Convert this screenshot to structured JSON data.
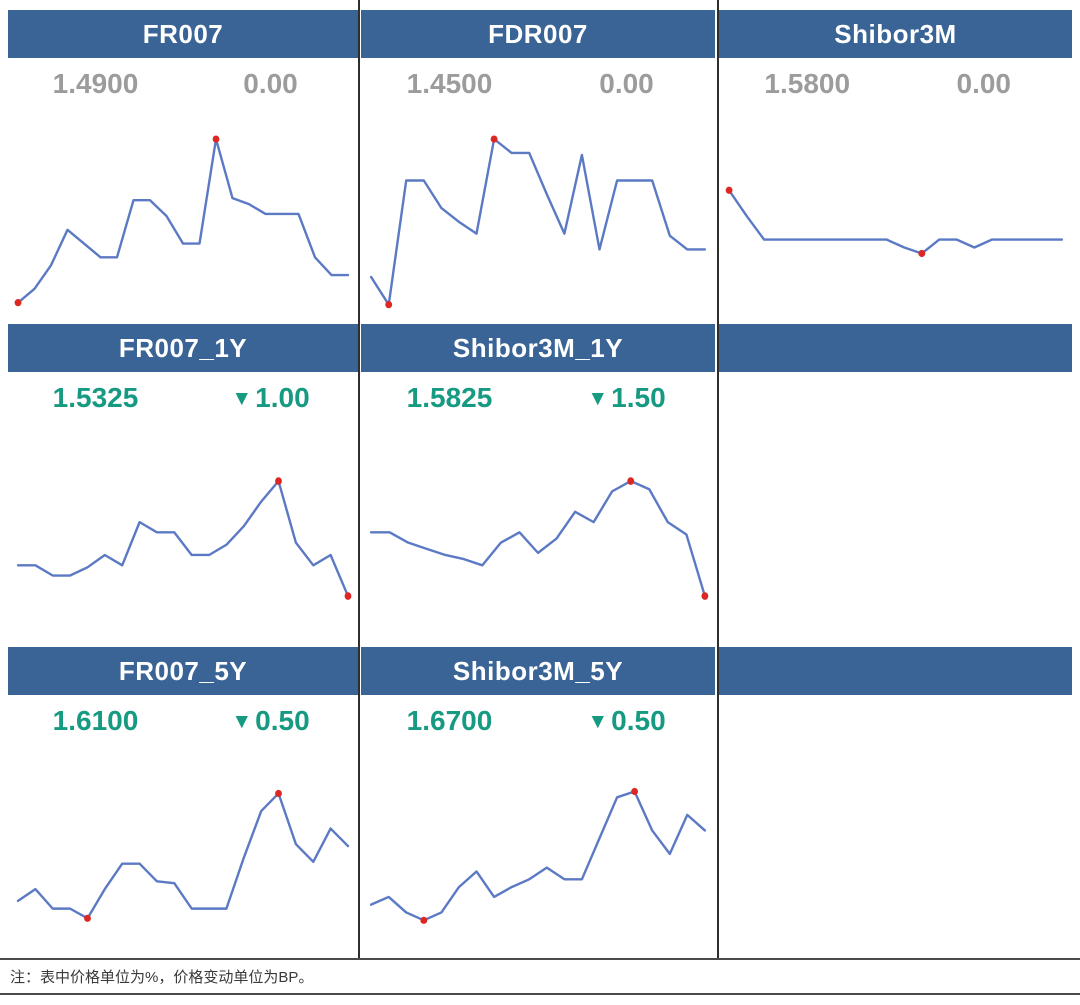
{
  "note": "注：表中价格单位为%，价格变动单位为BP。",
  "icons": {
    "down_triangle": "▼"
  },
  "colors": {
    "header_bg": "#3A6496",
    "header_text": "#FFFFFF",
    "neutral_value": "#9C9C9C",
    "down_green": "#169A82",
    "spark_line": "#5C79C4",
    "spark_marker": "#DD2725",
    "grid_line": "#2E2E2E"
  },
  "empty_header_cells": [
    {
      "row": 2,
      "col": 3
    },
    {
      "row": 3,
      "col": 3
    }
  ],
  "chart_data": [
    {
      "type": "line",
      "row": 1,
      "col": 1,
      "title": "FR007",
      "value": "1.4900",
      "change": "0.00",
      "direction": "flat",
      "y_relative": [
        6,
        13,
        25,
        43,
        36,
        29,
        29,
        58,
        58,
        50,
        36,
        36,
        89,
        59,
        56,
        51,
        51,
        51,
        29,
        20,
        20
      ],
      "min_index": 0,
      "max_index": 12
    },
    {
      "type": "line",
      "row": 1,
      "col": 2,
      "title": "FDR007",
      "value": "1.4500",
      "change": "0.00",
      "direction": "flat",
      "y_relative": [
        19,
        5,
        68,
        68,
        54,
        47,
        41,
        89,
        82,
        82,
        61,
        41,
        81,
        33,
        68,
        68,
        68,
        40,
        33,
        33
      ],
      "min_index": 1,
      "max_index": 7
    },
    {
      "type": "line",
      "row": 1,
      "col": 3,
      "title": "Shibor3M",
      "value": "1.5800",
      "change": "0.00",
      "direction": "flat",
      "y_relative": [
        63,
        50,
        38,
        38,
        38,
        38,
        38,
        38,
        38,
        38,
        34,
        31,
        38,
        38,
        34,
        38,
        38,
        38,
        38,
        38
      ],
      "min_index": 11,
      "max_index": 0
    },
    {
      "type": "line",
      "row": 2,
      "col": 1,
      "title": "FR007_1Y",
      "value": "1.5325",
      "change": "1.00",
      "direction": "down",
      "y_relative": [
        35,
        35,
        30,
        30,
        34,
        40,
        35,
        56,
        51,
        51,
        40,
        40,
        45,
        54,
        66,
        76,
        46,
        35,
        40,
        20
      ],
      "min_index": 19,
      "max_index": 15
    },
    {
      "type": "line",
      "row": 2,
      "col": 2,
      "title": "Shibor3M_1Y",
      "value": "1.5825",
      "change": "1.50",
      "direction": "down",
      "y_relative": [
        51,
        51,
        46,
        43,
        40,
        38,
        35,
        46,
        51,
        41,
        48,
        61,
        56,
        71,
        76,
        72,
        56,
        50,
        20
      ],
      "min_index": 18,
      "max_index": 14
    },
    {
      "type": "line",
      "row": 3,
      "col": 1,
      "title": "FR007_5Y",
      "value": "1.6100",
      "change": "0.50",
      "direction": "down",
      "y_relative": [
        25,
        31,
        21,
        21,
        16,
        31,
        44,
        44,
        35,
        34,
        21,
        21,
        21,
        47,
        71,
        80,
        54,
        45,
        62,
        53
      ],
      "min_index": 4,
      "max_index": 15
    },
    {
      "type": "line",
      "row": 3,
      "col": 2,
      "title": "Shibor3M_5Y",
      "value": "1.6700",
      "change": "0.50",
      "direction": "down",
      "y_relative": [
        23,
        27,
        19,
        15,
        19,
        32,
        40,
        27,
        32,
        36,
        42,
        36,
        36,
        57,
        78,
        81,
        61,
        49,
        69,
        61
      ],
      "min_index": 3,
      "max_index": 15
    }
  ]
}
